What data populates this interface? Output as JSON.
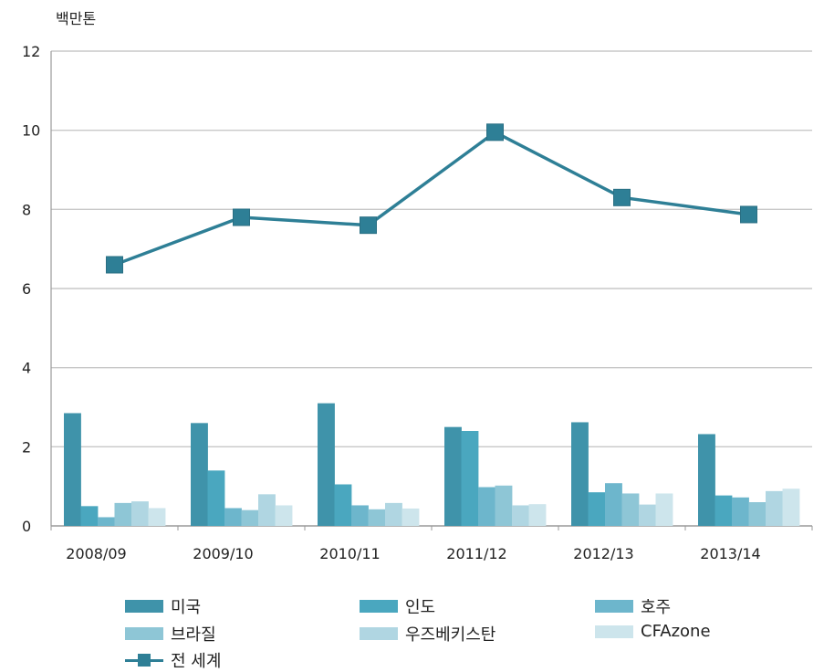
{
  "chart_data": {
    "type": "bar",
    "unit_label": "백만톤",
    "categories": [
      "2008/09",
      "2009/10",
      "2010/11",
      "2011/12",
      "2012/13",
      "2013/14"
    ],
    "ylim": [
      0,
      12
    ],
    "yticks": [
      0,
      2,
      4,
      6,
      8,
      10,
      12
    ],
    "grid": true,
    "legend_position": "bottom",
    "series": [
      {
        "name": "미국",
        "type": "bar",
        "color": "#3f93aa",
        "values": [
          2.85,
          2.6,
          3.1,
          2.5,
          2.62,
          2.32
        ]
      },
      {
        "name": "인도",
        "type": "bar",
        "color": "#4aa7bf",
        "values": [
          0.5,
          1.4,
          1.05,
          2.4,
          0.85,
          0.77
        ]
      },
      {
        "name": "호주",
        "type": "bar",
        "color": "#6db6cc",
        "values": [
          0.22,
          0.45,
          0.52,
          0.98,
          1.08,
          0.72
        ]
      },
      {
        "name": "브라질",
        "type": "bar",
        "color": "#8ec6d6",
        "values": [
          0.58,
          0.4,
          0.42,
          1.02,
          0.82,
          0.6
        ]
      },
      {
        "name": "우즈베키스탄",
        "type": "bar",
        "color": "#b0d6e2",
        "values": [
          0.62,
          0.8,
          0.58,
          0.52,
          0.54,
          0.88
        ]
      },
      {
        "name": "CFAzone",
        "type": "bar",
        "color": "#cde5ec",
        "values": [
          0.45,
          0.52,
          0.44,
          0.55,
          0.82,
          0.94
        ]
      },
      {
        "name": "전 세계",
        "type": "line",
        "color": "#2e7f96",
        "values": [
          6.6,
          7.8,
          7.6,
          9.95,
          8.3,
          7.87
        ]
      }
    ]
  }
}
